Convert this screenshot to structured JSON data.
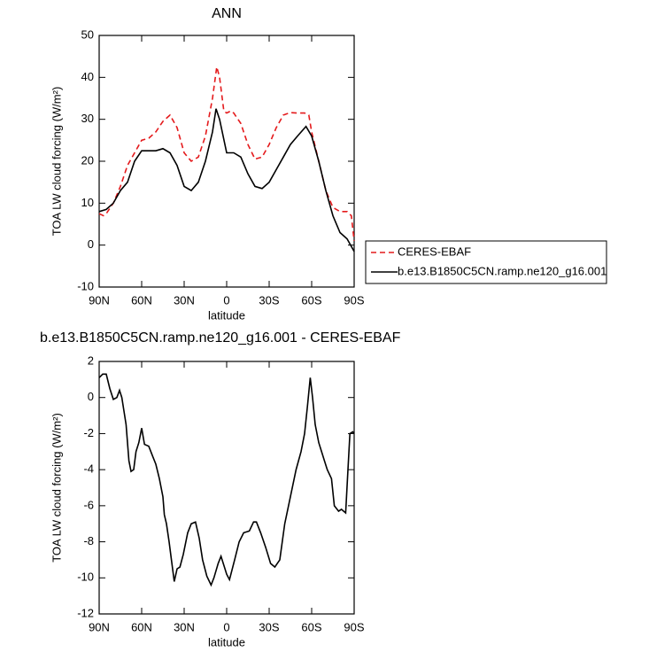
{
  "chart_data": [
    {
      "type": "line",
      "title": "ANN",
      "xlabel": "latitude",
      "ylabel": "TOA LW cloud forcing (W/m²)",
      "xlim": [
        90,
        -90
      ],
      "xticks": [
        {
          "value": 90,
          "label": "90N"
        },
        {
          "value": 60,
          "label": "60N"
        },
        {
          "value": 30,
          "label": "30N"
        },
        0,
        {
          "value": -30,
          "label": "30S"
        },
        {
          "value": -60,
          "label": "60S"
        },
        {
          "value": -90,
          "label": "90S"
        }
      ],
      "ylim": [
        -10,
        50
      ],
      "yticks": [
        -10,
        0,
        10,
        20,
        30,
        40,
        50
      ],
      "legend": "right",
      "series": [
        {
          "name": "CERES-EBAF",
          "color": "#e41a1c",
          "dashed": true,
          "x": [
            90,
            87,
            85,
            80,
            75,
            70,
            65,
            60,
            55,
            50,
            45,
            40,
            35,
            30,
            25,
            20,
            15,
            10,
            7,
            5,
            2,
            0,
            -3,
            -5,
            -10,
            -15,
            -20,
            -25,
            -30,
            -35,
            -40,
            -45,
            -50,
            -55,
            -58,
            -60,
            -65,
            -70,
            -75,
            -80,
            -85,
            -88,
            -90
          ],
          "values": [
            7.5,
            7,
            7.5,
            10,
            14,
            19,
            22,
            25,
            25.5,
            27,
            29.5,
            31,
            28,
            22,
            20,
            21,
            26,
            35,
            42.5,
            40,
            32,
            31.5,
            32,
            31.5,
            29,
            24,
            20.5,
            21,
            24,
            28,
            31,
            31.6,
            31.5,
            31.5,
            31,
            27,
            20,
            13,
            9,
            8,
            8,
            7,
            1
          ]
        },
        {
          "name": "b.e13.B1850C5CN.ramp.ne120_g16.001",
          "color": "#000000",
          "dashed": false,
          "x": [
            90,
            85,
            80,
            75,
            70,
            65,
            60,
            55,
            50,
            45,
            40,
            35,
            30,
            25,
            20,
            15,
            10,
            7.5,
            5,
            0,
            -5,
            -10,
            -15,
            -20,
            -25,
            -30,
            -35,
            -40,
            -45,
            -50,
            -56,
            -60,
            -65,
            -70,
            -75,
            -80,
            -85,
            -90
          ],
          "values": [
            8,
            8.5,
            10,
            13,
            15,
            20,
            22.5,
            22.5,
            22.5,
            23,
            22,
            19,
            14,
            13,
            15,
            20,
            27,
            32.5,
            30,
            22,
            22,
            21,
            17,
            14,
            13.5,
            15,
            18,
            21,
            24,
            26,
            28.3,
            26,
            20,
            13,
            7,
            3,
            1.5,
            -1.5
          ]
        }
      ]
    },
    {
      "type": "line",
      "title": "b.e13.B1850C5CN.ramp.ne120_g16.001 - CERES-EBAF",
      "xlabel": "latitude",
      "ylabel": "TOA LW cloud forcing (W/m²)",
      "xlim": [
        90,
        -90
      ],
      "xticks": [
        {
          "value": 90,
          "label": "90N"
        },
        {
          "value": 60,
          "label": "60N"
        },
        {
          "value": 30,
          "label": "30N"
        },
        0,
        {
          "value": -30,
          "label": "30S"
        },
        {
          "value": -60,
          "label": "60S"
        },
        {
          "value": -90,
          "label": "90S"
        }
      ],
      "ylim": [
        -12,
        2
      ],
      "yticks": [
        -12,
        -10,
        -8,
        -6,
        -4,
        -2,
        0,
        2
      ],
      "series": [
        {
          "color": "#000000",
          "dashed": false,
          "x": [
            90,
            87.5,
            85,
            82.5,
            80,
            77.5,
            75.6,
            74,
            71,
            69,
            67.5,
            65.6,
            64,
            62,
            60,
            58,
            55,
            52.5,
            50,
            47.5,
            45,
            44,
            42.5,
            40.6,
            39,
            37,
            35,
            33,
            30.6,
            27.5,
            25,
            22,
            19.4,
            17,
            14,
            11,
            9,
            6,
            4,
            2,
            0,
            -2,
            -5.6,
            -8.8,
            -12,
            -16,
            -19,
            -21,
            -24,
            -27.5,
            -31,
            -34,
            -37.5,
            -41,
            -45,
            -49,
            -52.5,
            -55,
            -57,
            -59,
            -60.6,
            -62.5,
            -65,
            -69,
            -71,
            -74,
            -76,
            -79,
            -81,
            -84,
            -85.6,
            -87,
            -89,
            -90
          ],
          "values": [
            1.1,
            1.3,
            1.3,
            0.5,
            -0.1,
            0,
            0.4,
            0,
            -1.5,
            -3.5,
            -4.1,
            -4,
            -3,
            -2.5,
            -1.7,
            -2.6,
            -2.7,
            -3.2,
            -3.7,
            -4.5,
            -5.5,
            -6.5,
            -7,
            -8,
            -9,
            -10.2,
            -9.5,
            -9.4,
            -8.7,
            -7.5,
            -7,
            -6.9,
            -7.8,
            -9,
            -9.9,
            -10.4,
            -10,
            -9.2,
            -8.8,
            -9.3,
            -9.8,
            -10.1,
            -9,
            -8,
            -7.5,
            -7.4,
            -6.9,
            -6.9,
            -7.5,
            -8.3,
            -9.2,
            -9.4,
            -9,
            -7,
            -5.5,
            -4,
            -3,
            -2,
            -0.5,
            1.1,
            0,
            -1.5,
            -2.5,
            -3.5,
            -4,
            -4.5,
            -6,
            -6.3,
            -6.2,
            -6.4,
            -4,
            -2,
            -1.9,
            -2
          ]
        }
      ]
    }
  ]
}
